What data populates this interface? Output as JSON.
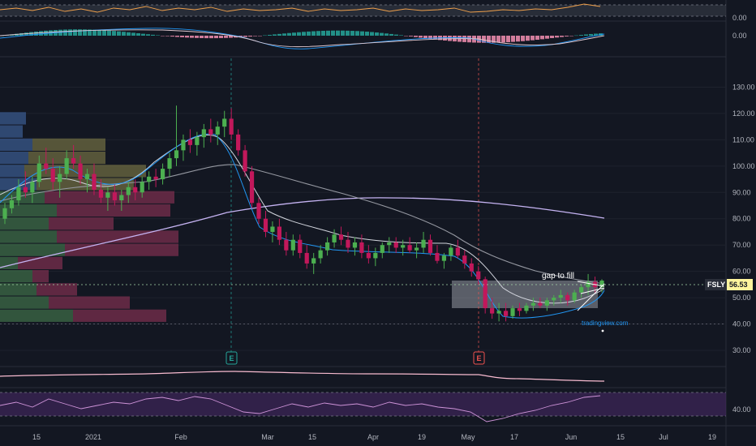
{
  "chart_data": {
    "type": "candlestick",
    "symbol": "FSLY",
    "last_price": "56.53",
    "colors": {
      "up": "#4caf50",
      "down": "#c2185b",
      "ema_fast": "#2196f3",
      "ema_mid": "#b2b5be",
      "sma_long": "#9c8fd6",
      "sma_200": "#b39ddb",
      "rsi": "#9c27b0",
      "price_tag": "#fff59d",
      "earnings_up": "#26a69a",
      "earnings_down": "#ef5350"
    },
    "price_axis": {
      "ticks": [
        "130.00",
        "120.00",
        "110.00",
        "100.00",
        "90.00",
        "80.00",
        "70.00",
        "60.00",
        "50.00",
        "40.00",
        "30.00"
      ],
      "range": [
        26,
        136
      ]
    },
    "top_panel_axis": {
      "ticks": [
        "0.00"
      ]
    },
    "macd_axis": {
      "ticks": [
        "0.00"
      ]
    },
    "rsi_axis": {
      "ticks": [
        "40.00"
      ]
    },
    "x_axis": {
      "labels": [
        "15",
        "2021",
        "Feb",
        "Mar",
        "15",
        "Apr",
        "19",
        "May",
        "17",
        "Jun",
        "15",
        "Jul",
        "19"
      ]
    },
    "earnings_markers": [
      "E",
      "E"
    ],
    "annotations": {
      "gap_label": "gap to fill",
      "watermark": "tradingview.com"
    },
    "candles": [
      [
        80,
        86,
        78,
        84
      ],
      [
        84,
        89,
        82,
        87
      ],
      [
        87,
        95,
        85,
        92
      ],
      [
        92,
        98,
        88,
        90
      ],
      [
        90,
        96,
        86,
        94
      ],
      [
        94,
        104,
        92,
        101
      ],
      [
        101,
        107,
        97,
        99
      ],
      [
        99,
        103,
        91,
        94
      ],
      [
        94,
        100,
        88,
        97
      ],
      [
        97,
        106,
        95,
        103
      ],
      [
        103,
        108,
        99,
        101
      ],
      [
        101,
        104,
        93,
        95
      ],
      [
        95,
        99,
        90,
        97
      ],
      [
        97,
        101,
        89,
        91
      ],
      [
        91,
        95,
        86,
        88
      ],
      [
        88,
        92,
        83,
        90
      ],
      [
        90,
        93,
        85,
        87
      ],
      [
        87,
        91,
        83,
        89
      ],
      [
        89,
        94,
        86,
        92
      ],
      [
        92,
        95,
        87,
        90
      ],
      [
        90,
        96,
        88,
        94
      ],
      [
        94,
        98,
        91,
        96
      ],
      [
        96,
        99,
        92,
        95
      ],
      [
        95,
        101,
        93,
        99
      ],
      [
        99,
        105,
        96,
        103
      ],
      [
        103,
        123,
        100,
        106
      ],
      [
        106,
        112,
        102,
        110
      ],
      [
        110,
        114,
        105,
        108
      ],
      [
        108,
        113,
        104,
        111
      ],
      [
        111,
        116,
        107,
        114
      ],
      [
        114,
        118,
        109,
        112
      ],
      [
        112,
        117,
        108,
        115
      ],
      [
        115,
        121,
        111,
        118
      ],
      [
        118,
        122,
        110,
        112
      ],
      [
        112,
        114,
        104,
        106
      ],
      [
        106,
        108,
        96,
        98
      ],
      [
        98,
        100,
        84,
        86
      ],
      [
        86,
        88,
        78,
        80
      ],
      [
        80,
        83,
        73,
        75
      ],
      [
        75,
        79,
        71,
        77
      ],
      [
        77,
        80,
        70,
        72
      ],
      [
        72,
        75,
        66,
        68
      ],
      [
        68,
        74,
        66,
        72
      ],
      [
        72,
        74,
        65,
        67
      ],
      [
        67,
        70,
        61,
        63
      ],
      [
        63,
        67,
        59,
        65
      ],
      [
        65,
        70,
        63,
        68
      ],
      [
        68,
        73,
        66,
        71
      ],
      [
        71,
        76,
        69,
        74
      ],
      [
        74,
        77,
        70,
        72
      ],
      [
        72,
        75,
        67,
        69
      ],
      [
        69,
        73,
        66,
        71
      ],
      [
        71,
        74,
        65,
        67
      ],
      [
        67,
        70,
        63,
        65
      ],
      [
        65,
        69,
        62,
        67
      ],
      [
        67,
        71,
        65,
        70
      ],
      [
        70,
        73,
        67,
        71
      ],
      [
        71,
        73,
        67,
        69
      ],
      [
        69,
        72,
        66,
        70
      ],
      [
        70,
        73,
        67,
        68
      ],
      [
        68,
        71,
        65,
        69
      ],
      [
        69,
        75,
        67,
        72
      ],
      [
        72,
        74,
        66,
        67
      ],
      [
        67,
        70,
        63,
        64
      ],
      [
        64,
        67,
        61,
        66
      ],
      [
        66,
        70,
        64,
        69
      ],
      [
        69,
        72,
        65,
        66
      ],
      [
        66,
        68,
        61,
        63
      ],
      [
        63,
        65,
        58,
        60
      ],
      [
        60,
        62,
        55,
        57
      ],
      [
        57,
        58,
        44,
        46
      ],
      [
        46,
        50,
        42,
        44
      ],
      [
        44,
        48,
        41,
        45
      ],
      [
        45,
        48,
        41,
        43
      ],
      [
        43,
        47,
        42,
        46
      ],
      [
        46,
        48,
        43,
        45
      ],
      [
        45,
        48,
        44,
        47
      ],
      [
        47,
        50,
        45,
        48
      ],
      [
        48,
        50,
        46,
        47
      ],
      [
        47,
        50,
        45,
        49
      ],
      [
        49,
        51,
        47,
        50
      ],
      [
        50,
        53,
        48,
        51
      ],
      [
        51,
        52,
        47,
        49
      ],
      [
        49,
        53,
        48,
        52
      ],
      [
        52,
        55,
        50,
        54
      ],
      [
        54,
        59,
        51,
        56
      ],
      [
        56,
        58,
        52,
        54
      ],
      [
        54,
        57,
        52,
        56.5
      ]
    ]
  }
}
